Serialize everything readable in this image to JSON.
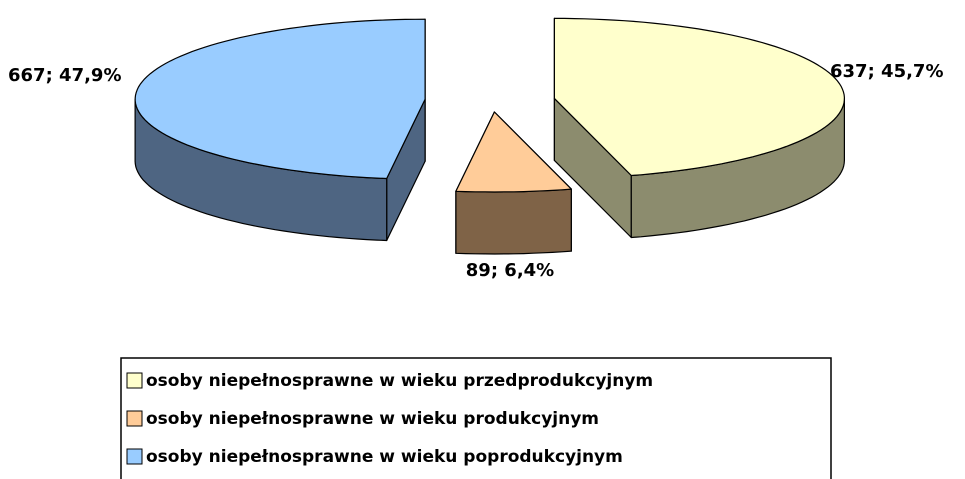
{
  "chart_data": {
    "type": "pie3d",
    "categories": [
      "osoby niepełnosprawne w wieku przedprodukcyjnym",
      "osoby niepełnosprawne w wieku produkcyjnym",
      "osoby niepełnosprawne w wieku poprodukcyjnym"
    ],
    "values": [
      637,
      89,
      667
    ],
    "value_labels": [
      "637; 45,7%",
      "89; 6,4%",
      "667; 47,9%"
    ],
    "colors": [
      "#FFFFCC",
      "#FFCC99",
      "#99CCFF"
    ],
    "side_colors": [
      "#8C8C6E",
      "#7F6347",
      "#4E6582"
    ]
  }
}
